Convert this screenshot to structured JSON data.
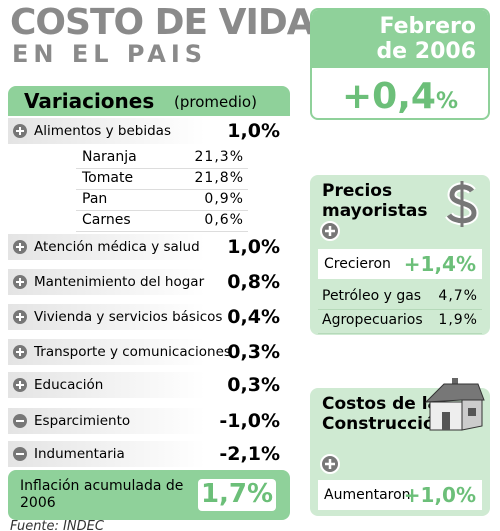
{
  "header": {
    "title": "COSTO DE VIDA",
    "subtitle": "EN EL PAIS"
  },
  "month": {
    "line1": "Febrero",
    "line2": "de 2006",
    "value": "+0,4",
    "unit": "%"
  },
  "variaciones": {
    "title": "Variaciones",
    "note": "(promedio)",
    "items": [
      {
        "label": "Alimentos y bebidas",
        "value": "1,0%"
      },
      {
        "label": "Atención médica y salud",
        "value": "1,0%"
      },
      {
        "label": "Mantenimiento del hogar",
        "value": "0,8%"
      },
      {
        "label": "Vivienda y servicios básicos",
        "value": "0,4%"
      },
      {
        "label": "Transporte y comunicaciones",
        "value": "0,3%"
      },
      {
        "label": "Educación",
        "value": "0,3%"
      },
      {
        "label": "Esparcimiento",
        "value": "-1,0%"
      },
      {
        "label": "Indumentaria",
        "value": "-2,1%"
      }
    ],
    "subitems": [
      {
        "label": "Naranja",
        "value": "21,3%"
      },
      {
        "label": "Tomate",
        "value": "21,8%"
      },
      {
        "label": "Pan",
        "value": "0,9%"
      },
      {
        "label": "Carnes",
        "value": "0,6%"
      }
    ]
  },
  "inflacion": {
    "label": "Inflación acumulada de 2006",
    "value": "1,7%"
  },
  "mayoristas": {
    "title": "Precios mayoristas",
    "main": {
      "label": "Crecieron",
      "value": "+1,4%"
    },
    "items": [
      {
        "label": "Petróleo y gas",
        "value": "4,7%"
      },
      {
        "label": "Agropecuarios",
        "value": "1,9%"
      }
    ]
  },
  "construccion": {
    "title": "Costos de la Construcción",
    "main": {
      "label": "Aumentaron",
      "value": "+1,0%"
    }
  },
  "source": "Fuente: INDEC"
}
